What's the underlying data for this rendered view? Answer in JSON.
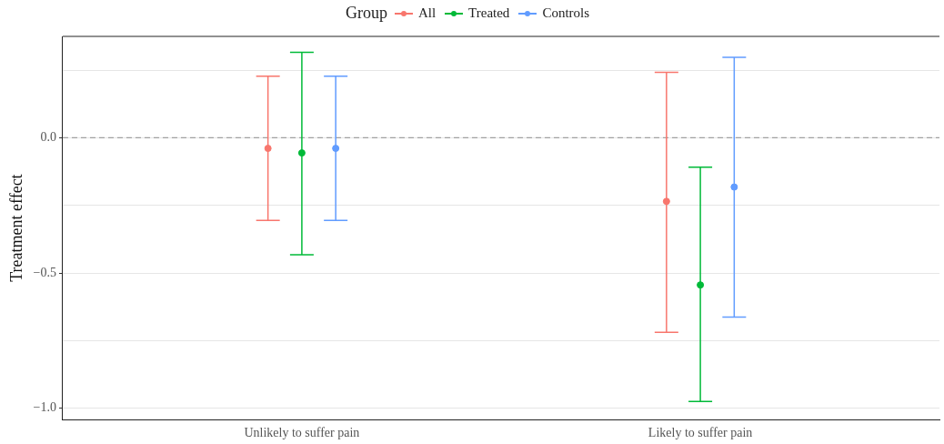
{
  "chart_data": {
    "type": "scatter",
    "ylabel": "Treatment effect",
    "legend_title": "Group",
    "legend": "top",
    "grid": "y",
    "marker": "circle",
    "categories": [
      "Unlikely to suffer pain",
      "Likely to suffer pain"
    ],
    "ylim": [
      -1.042,
      0.375
    ],
    "yticks": [
      {
        "value": -1,
        "label": "−1.0"
      },
      {
        "value": -0.75,
        "label": null
      },
      {
        "value": -0.5,
        "label": "−0.5"
      },
      {
        "value": -0.25,
        "label": null
      },
      {
        "value": 0,
        "label": "0.0"
      },
      {
        "value": 0.25,
        "label": null
      }
    ],
    "ref_lines": [
      {
        "axis": "y",
        "value": 0,
        "label": null,
        "color": "#a0a0a0",
        "line_style": "dashed"
      }
    ],
    "series": [
      {
        "name": "All",
        "color": "#f8766d",
        "values": [
          -0.039,
          -0.235
        ],
        "errors": [
          [
            -0.305,
            0.228
          ],
          [
            -0.719,
            0.242
          ]
        ]
      },
      {
        "name": "Treated",
        "color": "#00ba38",
        "values": [
          -0.056,
          -0.544
        ],
        "errors": [
          [
            -0.432,
            0.316
          ],
          [
            -0.975,
            -0.109
          ]
        ]
      },
      {
        "name": "Controls",
        "color": "#619cff",
        "values": [
          -0.039,
          -0.182
        ],
        "errors": [
          [
            -0.305,
            0.228
          ],
          [
            -0.663,
            0.298
          ]
        ]
      }
    ]
  }
}
